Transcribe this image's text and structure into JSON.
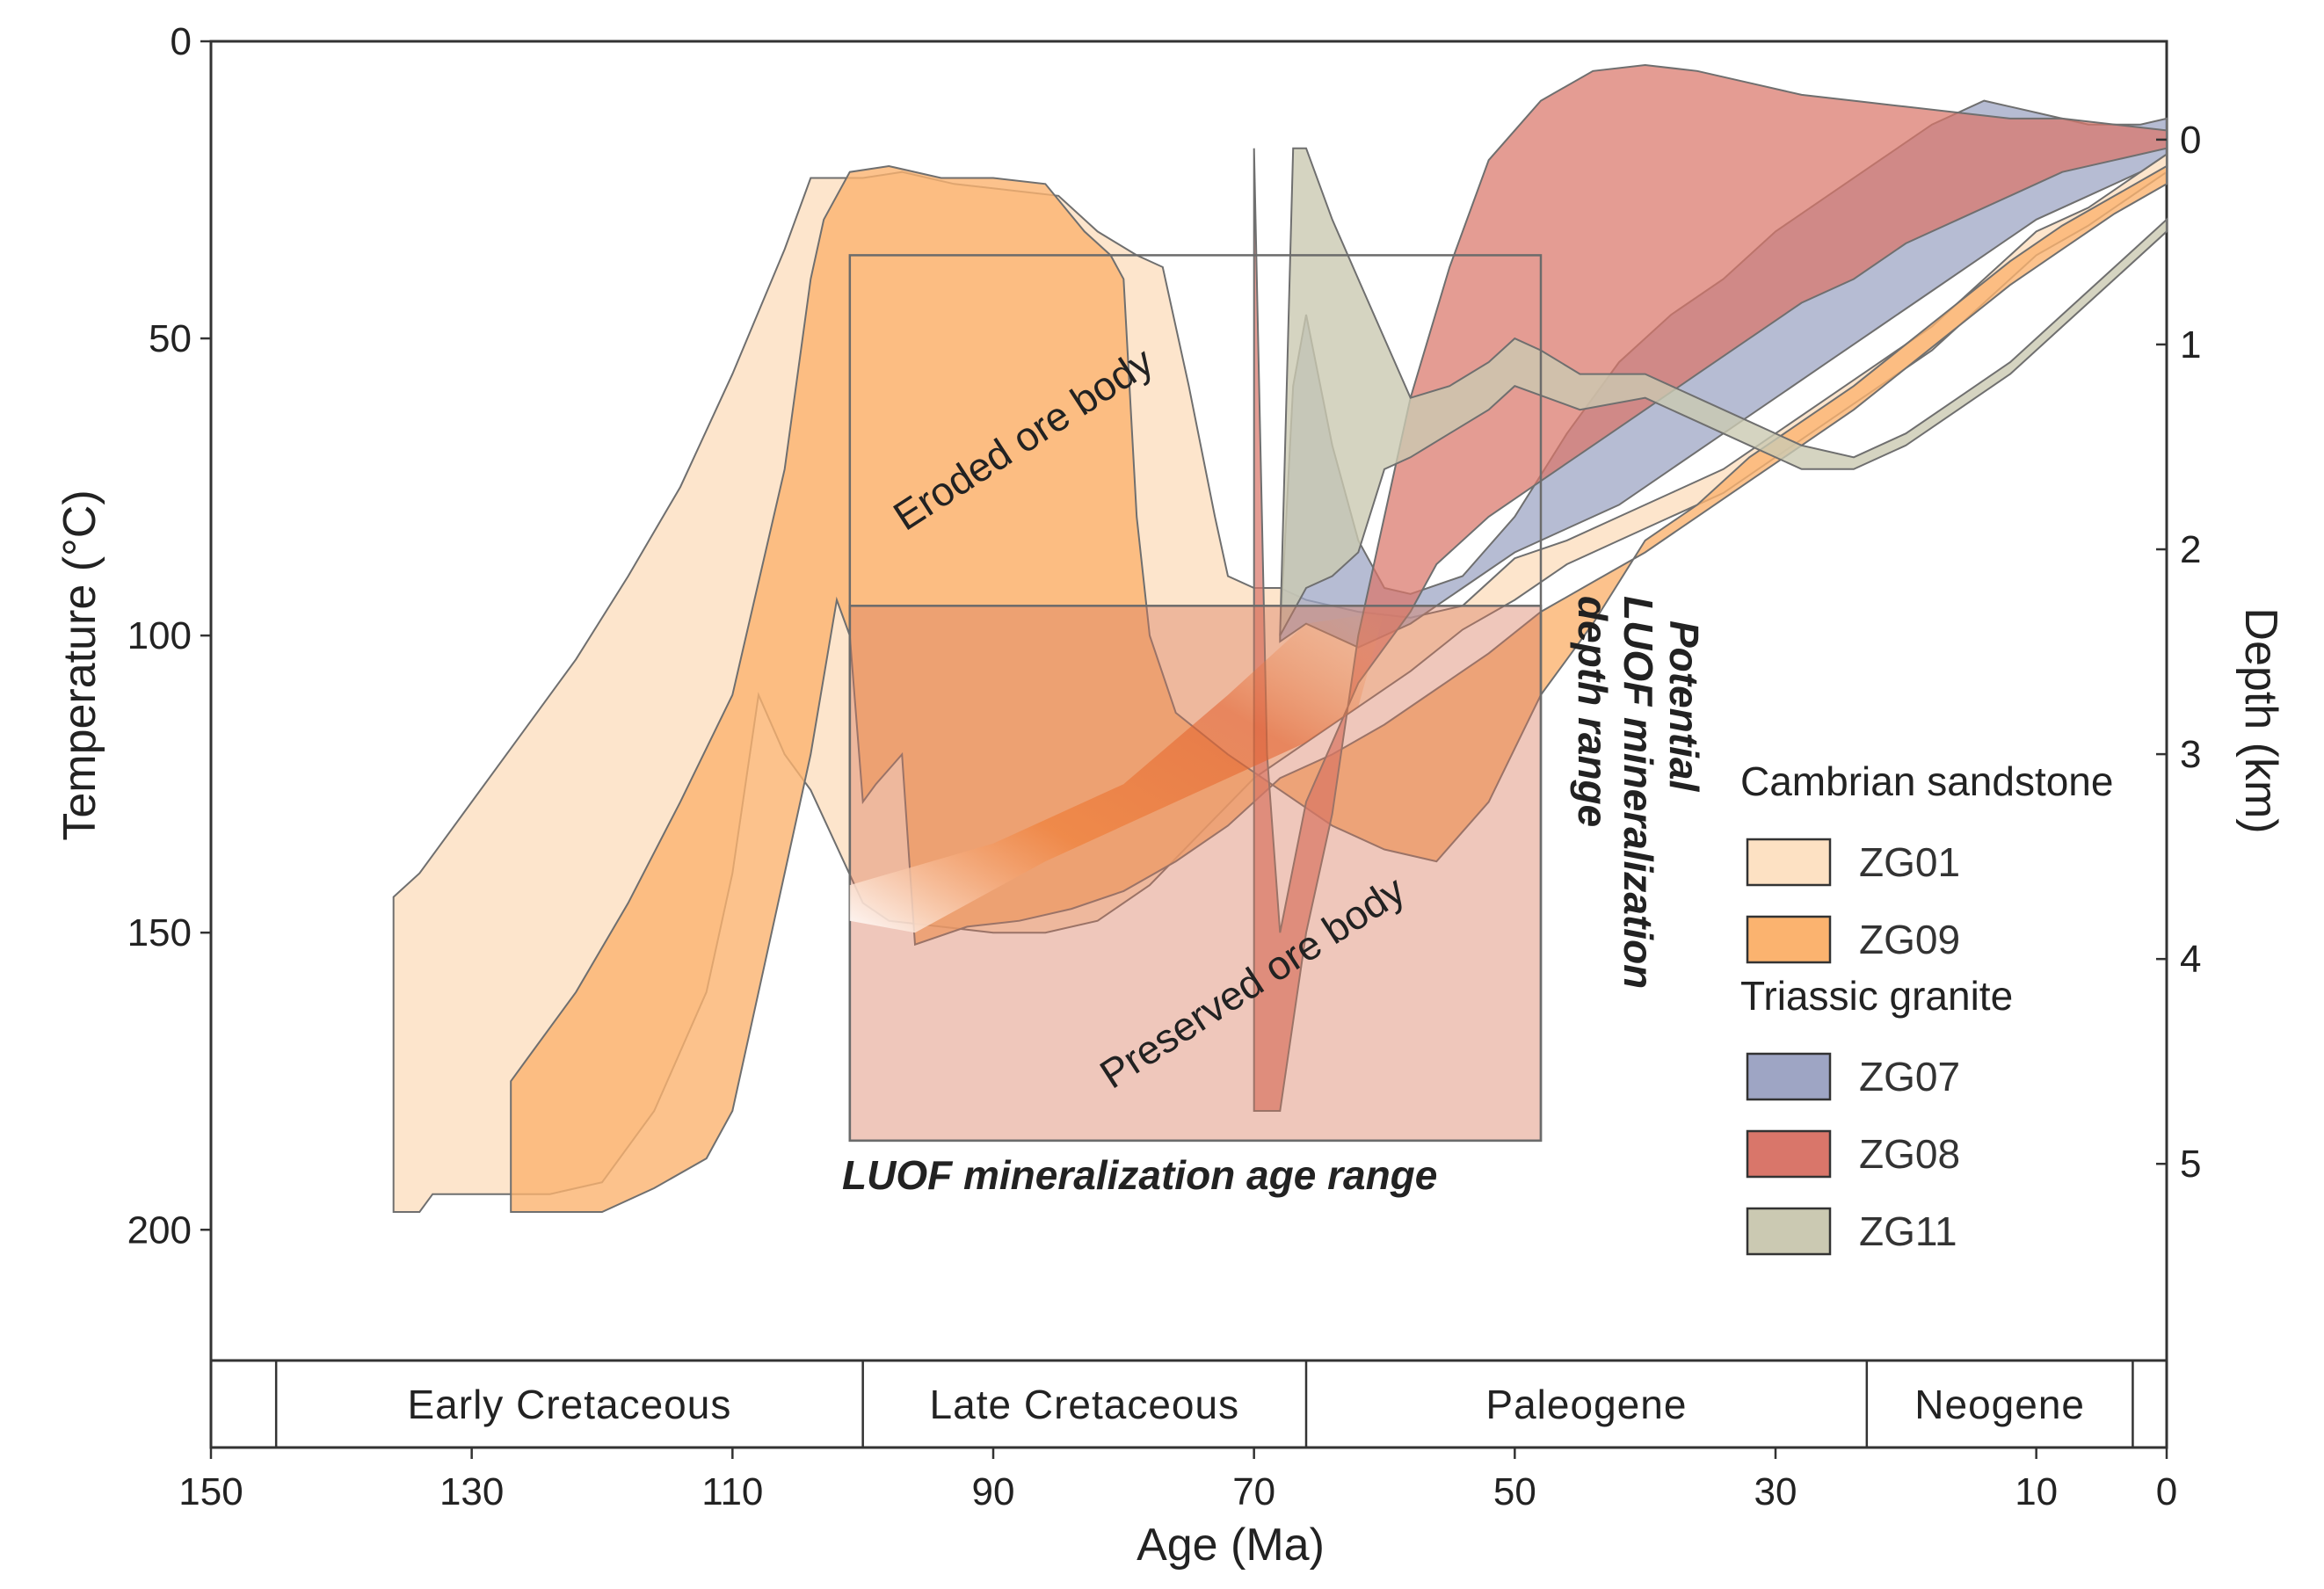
{
  "chart_data": {
    "type": "area",
    "title": "",
    "xlabel": "Age (Ma)",
    "ylabel": "Temperature (°C)",
    "y2label": "Depth (km)",
    "xlim": [
      150,
      0
    ],
    "ylim": [
      0,
      222
    ],
    "y2lim": [
      -0.48,
      5.96
    ],
    "x_ticks": [
      150,
      130,
      110,
      90,
      70,
      50,
      30,
      10,
      0
    ],
    "y_ticks": [
      0,
      50,
      100,
      150,
      200
    ],
    "y2_ticks": [
      0,
      1,
      2,
      3,
      4,
      5
    ],
    "periods": [
      {
        "name": "Early Cretaceous",
        "start": 145,
        "end": 100
      },
      {
        "name": "Late Cretaceous",
        "start": 100,
        "end": 66
      },
      {
        "name": "Paleogene",
        "start": 66,
        "end": 23
      },
      {
        "name": "Neogene",
        "start": 23,
        "end": 2.6
      }
    ],
    "legend": {
      "groups": [
        {
          "title": "Cambrian sandstone",
          "entries": [
            {
              "label": "ZG01",
              "color": "#fde1c3"
            },
            {
              "label": "ZG09",
              "color": "#fbb36f"
            }
          ]
        },
        {
          "title": "Triassic granite",
          "entries": [
            {
              "label": "ZG07",
              "color": "#9ea5c4"
            },
            {
              "label": "ZG08",
              "color": "#d9766a"
            },
            {
              "label": "ZG11",
              "color": "#cbc9b2"
            }
          ]
        }
      ]
    },
    "boxes": {
      "mineralization_age": {
        "x_range": [
          101,
          48
        ],
        "y_range": [
          36,
          185
        ]
      },
      "eroded_ore_body": {
        "label": "Eroded ore body"
      },
      "preserved_ore_body": {
        "label": "Preserved ore body"
      },
      "age_range_label": "LUOF mineralization age range",
      "depth_range_label_lines": [
        "Potential",
        "LUOF mineralization",
        "depth range"
      ]
    },
    "series": [
      {
        "name": "ZG01",
        "color": "#fde1c3",
        "opacity": 0.85,
        "polygon": [
          [
            136,
            144
          ],
          [
            134,
            140
          ],
          [
            130,
            128
          ],
          [
            126,
            116
          ],
          [
            122,
            104
          ],
          [
            118,
            90
          ],
          [
            114,
            75
          ],
          [
            110,
            56
          ],
          [
            106,
            35
          ],
          [
            104,
            23
          ],
          [
            100,
            23
          ],
          [
            97,
            22
          ],
          [
            93,
            24
          ],
          [
            89,
            25
          ],
          [
            85,
            26
          ],
          [
            82,
            32
          ],
          [
            79,
            36
          ],
          [
            77,
            38
          ],
          [
            75,
            58
          ],
          [
            73,
            80
          ],
          [
            72,
            90
          ],
          [
            70,
            92
          ],
          [
            68,
            92
          ],
          [
            66,
            94
          ],
          [
            62,
            96
          ],
          [
            58,
            97
          ],
          [
            54,
            95
          ],
          [
            50,
            87
          ],
          [
            46,
            84
          ],
          [
            42,
            80
          ],
          [
            38,
            76
          ],
          [
            34,
            72
          ],
          [
            30,
            66
          ],
          [
            26,
            60
          ],
          [
            22,
            54
          ],
          [
            18,
            48
          ],
          [
            14,
            40
          ],
          [
            10,
            32
          ],
          [
            6,
            28
          ],
          [
            2,
            22
          ],
          [
            0,
            19
          ],
          [
            0,
            22
          ],
          [
            2,
            25
          ],
          [
            6,
            31
          ],
          [
            10,
            36
          ],
          [
            14,
            44
          ],
          [
            18,
            52
          ],
          [
            22,
            58
          ],
          [
            26,
            64
          ],
          [
            30,
            70
          ],
          [
            34,
            76
          ],
          [
            38,
            80
          ],
          [
            42,
            84
          ],
          [
            46,
            88
          ],
          [
            50,
            94
          ],
          [
            54,
            99
          ],
          [
            58,
            106
          ],
          [
            62,
            112
          ],
          [
            66,
            118
          ],
          [
            70,
            124
          ],
          [
            74,
            133
          ],
          [
            78,
            142
          ],
          [
            82,
            148
          ],
          [
            86,
            150
          ],
          [
            90,
            150
          ],
          [
            94,
            149
          ],
          [
            98,
            148
          ],
          [
            100,
            145
          ],
          [
            104,
            126
          ],
          [
            106,
            120
          ],
          [
            108,
            110
          ],
          [
            110,
            140
          ],
          [
            112,
            160
          ],
          [
            116,
            180
          ],
          [
            120,
            192
          ],
          [
            124,
            194
          ],
          [
            130,
            194
          ],
          [
            133,
            194
          ],
          [
            134,
            197
          ],
          [
            136,
            197
          ]
        ]
      },
      {
        "name": "ZG09",
        "color": "#fbb36f",
        "opacity": 0.8,
        "polygon": [
          [
            127,
            175
          ],
          [
            126,
            172
          ],
          [
            122,
            160
          ],
          [
            118,
            145
          ],
          [
            114,
            128
          ],
          [
            110,
            110
          ],
          [
            106,
            72
          ],
          [
            104,
            40
          ],
          [
            103,
            30
          ],
          [
            101,
            22
          ],
          [
            98,
            21
          ],
          [
            94,
            23
          ],
          [
            90,
            23
          ],
          [
            86,
            24
          ],
          [
            83,
            32
          ],
          [
            81,
            36
          ],
          [
            80,
            40
          ],
          [
            79,
            80
          ],
          [
            78,
            100
          ],
          [
            76,
            113
          ],
          [
            72,
            120
          ],
          [
            68,
            126
          ],
          [
            64,
            132
          ],
          [
            60,
            136
          ],
          [
            56,
            138
          ],
          [
            52,
            128
          ],
          [
            48,
            110
          ],
          [
            44,
            98
          ],
          [
            40,
            84
          ],
          [
            36,
            78
          ],
          [
            32,
            70
          ],
          [
            28,
            64
          ],
          [
            24,
            58
          ],
          [
            20,
            51
          ],
          [
            16,
            44
          ],
          [
            12,
            37
          ],
          [
            8,
            31
          ],
          [
            4,
            26
          ],
          [
            0,
            21
          ],
          [
            0,
            24
          ],
          [
            4,
            29
          ],
          [
            8,
            35
          ],
          [
            12,
            41
          ],
          [
            16,
            48
          ],
          [
            20,
            55
          ],
          [
            24,
            62
          ],
          [
            28,
            68
          ],
          [
            32,
            74
          ],
          [
            36,
            80
          ],
          [
            40,
            86
          ],
          [
            44,
            91
          ],
          [
            48,
            96
          ],
          [
            52,
            103
          ],
          [
            56,
            109
          ],
          [
            60,
            115
          ],
          [
            64,
            120
          ],
          [
            68,
            124
          ],
          [
            72,
            132
          ],
          [
            76,
            138
          ],
          [
            80,
            143
          ],
          [
            84,
            146
          ],
          [
            88,
            148
          ],
          [
            92,
            149
          ],
          [
            96,
            152
          ],
          [
            97,
            120
          ],
          [
            99,
            125
          ],
          [
            100,
            128
          ],
          [
            101,
            100
          ],
          [
            102,
            94
          ],
          [
            104,
            120
          ],
          [
            106,
            140
          ],
          [
            108,
            160
          ],
          [
            110,
            180
          ],
          [
            112,
            188
          ],
          [
            116,
            193
          ],
          [
            120,
            197
          ],
          [
            124,
            197
          ],
          [
            127,
            197
          ]
        ]
      },
      {
        "name": "ZG07",
        "color": "#9ea5c4",
        "opacity": 0.75,
        "polygon": [
          [
            68,
            100
          ],
          [
            67,
            58
          ],
          [
            66,
            46
          ],
          [
            64,
            68
          ],
          [
            62,
            84
          ],
          [
            60,
            92
          ],
          [
            58,
            93
          ],
          [
            54,
            90
          ],
          [
            50,
            80
          ],
          [
            46,
            66
          ],
          [
            42,
            54
          ],
          [
            38,
            46
          ],
          [
            34,
            40
          ],
          [
            30,
            32
          ],
          [
            26,
            26
          ],
          [
            22,
            20
          ],
          [
            18,
            14
          ],
          [
            14,
            10
          ],
          [
            10,
            12
          ],
          [
            6,
            14
          ],
          [
            2,
            14
          ],
          [
            0,
            13
          ],
          [
            0,
            19
          ],
          [
            2,
            22
          ],
          [
            6,
            26
          ],
          [
            10,
            30
          ],
          [
            14,
            36
          ],
          [
            18,
            42
          ],
          [
            22,
            48
          ],
          [
            26,
            54
          ],
          [
            30,
            60
          ],
          [
            34,
            66
          ],
          [
            38,
            72
          ],
          [
            42,
            78
          ],
          [
            46,
            82
          ],
          [
            50,
            86
          ],
          [
            54,
            92
          ],
          [
            58,
            98
          ],
          [
            62,
            102
          ],
          [
            64,
            100
          ],
          [
            66,
            98
          ],
          [
            68,
            101
          ]
        ]
      },
      {
        "name": "ZG08",
        "color": "#d9766a",
        "opacity": 0.72,
        "polygon": [
          [
            70,
            180
          ],
          [
            68,
            180
          ],
          [
            66,
            150
          ],
          [
            64,
            130
          ],
          [
            62,
            100
          ],
          [
            60,
            80
          ],
          [
            58,
            60
          ],
          [
            55,
            38
          ],
          [
            52,
            20
          ],
          [
            48,
            10
          ],
          [
            44,
            5
          ],
          [
            40,
            4
          ],
          [
            36,
            5
          ],
          [
            32,
            7
          ],
          [
            28,
            9
          ],
          [
            24,
            10
          ],
          [
            20,
            11
          ],
          [
            16,
            12
          ],
          [
            12,
            13
          ],
          [
            8,
            13
          ],
          [
            4,
            14
          ],
          [
            0,
            15
          ],
          [
            0,
            18
          ],
          [
            4,
            20
          ],
          [
            8,
            22
          ],
          [
            12,
            26
          ],
          [
            16,
            30
          ],
          [
            20,
            34
          ],
          [
            24,
            40
          ],
          [
            28,
            44
          ],
          [
            32,
            50
          ],
          [
            36,
            56
          ],
          [
            40,
            62
          ],
          [
            44,
            68
          ],
          [
            48,
            74
          ],
          [
            52,
            80
          ],
          [
            56,
            88
          ],
          [
            58,
            96
          ],
          [
            62,
            108
          ],
          [
            66,
            128
          ],
          [
            68,
            150
          ],
          [
            69,
            120
          ],
          [
            70,
            18
          ],
          [
            70,
            60
          ]
        ]
      },
      {
        "name": "ZG11",
        "color": "#cbc9b2",
        "opacity": 0.8,
        "polygon": [
          [
            68,
            100
          ],
          [
            67,
            18
          ],
          [
            66,
            18
          ],
          [
            64,
            30
          ],
          [
            62,
            40
          ],
          [
            60,
            50
          ],
          [
            58,
            60
          ],
          [
            55,
            58
          ],
          [
            52,
            54
          ],
          [
            50,
            50
          ],
          [
            48,
            52
          ],
          [
            45,
            56
          ],
          [
            40,
            56
          ],
          [
            36,
            60
          ],
          [
            32,
            64
          ],
          [
            28,
            68
          ],
          [
            24,
            70
          ],
          [
            20,
            66
          ],
          [
            16,
            60
          ],
          [
            12,
            54
          ],
          [
            8,
            46
          ],
          [
            4,
            38
          ],
          [
            0,
            30
          ],
          [
            0,
            32
          ],
          [
            4,
            40
          ],
          [
            8,
            48
          ],
          [
            12,
            56
          ],
          [
            16,
            62
          ],
          [
            20,
            68
          ],
          [
            24,
            72
          ],
          [
            28,
            72
          ],
          [
            32,
            68
          ],
          [
            36,
            64
          ],
          [
            40,
            60
          ],
          [
            45,
            62
          ],
          [
            50,
            58
          ],
          [
            52,
            62
          ],
          [
            55,
            66
          ],
          [
            58,
            70
          ],
          [
            60,
            72
          ],
          [
            62,
            86
          ],
          [
            64,
            90
          ],
          [
            66,
            92
          ],
          [
            68,
            100
          ]
        ]
      }
    ]
  }
}
